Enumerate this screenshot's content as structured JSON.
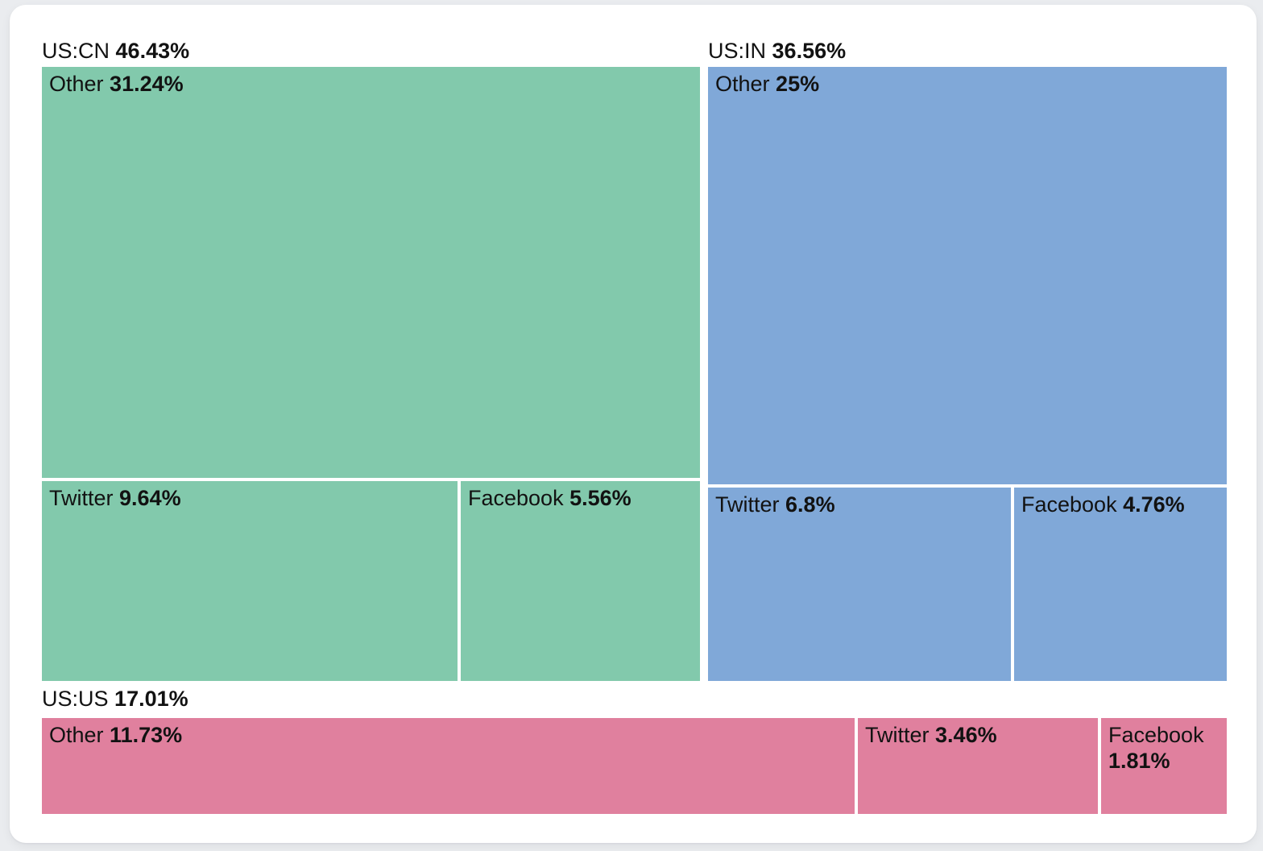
{
  "theme": {
    "background": "#eaecef",
    "card": "#ffffff",
    "text": "#121212",
    "gap": "#ffffff"
  },
  "chart_data": {
    "type": "treemap",
    "title": "",
    "unit": "percent",
    "legend_position": "none",
    "groups": [
      {
        "id": "us-cn",
        "label": "US:CN",
        "value": 46.43,
        "display": "46.43%",
        "color": "#82c9ac",
        "children": [
          {
            "label": "Other",
            "value": 31.24,
            "display": "31.24%"
          },
          {
            "label": "Twitter",
            "value": 9.64,
            "display": "9.64%"
          },
          {
            "label": "Facebook",
            "value": 5.56,
            "display": "5.56%"
          }
        ]
      },
      {
        "id": "us-in",
        "label": "US:IN",
        "value": 36.56,
        "display": "36.56%",
        "color": "#80a8d8",
        "children": [
          {
            "label": "Other",
            "value": 25,
            "display": "25%"
          },
          {
            "label": "Twitter",
            "value": 6.8,
            "display": "6.8%"
          },
          {
            "label": "Facebook",
            "value": 4.76,
            "display": "4.76%"
          }
        ]
      },
      {
        "id": "us-us",
        "label": "US:US",
        "value": 17.01,
        "display": "17.01%",
        "color": "#e0809e",
        "children": [
          {
            "label": "Other",
            "value": 11.73,
            "display": "11.73%"
          },
          {
            "label": "Twitter",
            "value": 3.46,
            "display": "3.46%"
          },
          {
            "label": "Facebook",
            "value": 1.81,
            "display": "1.81%"
          }
        ]
      }
    ]
  }
}
